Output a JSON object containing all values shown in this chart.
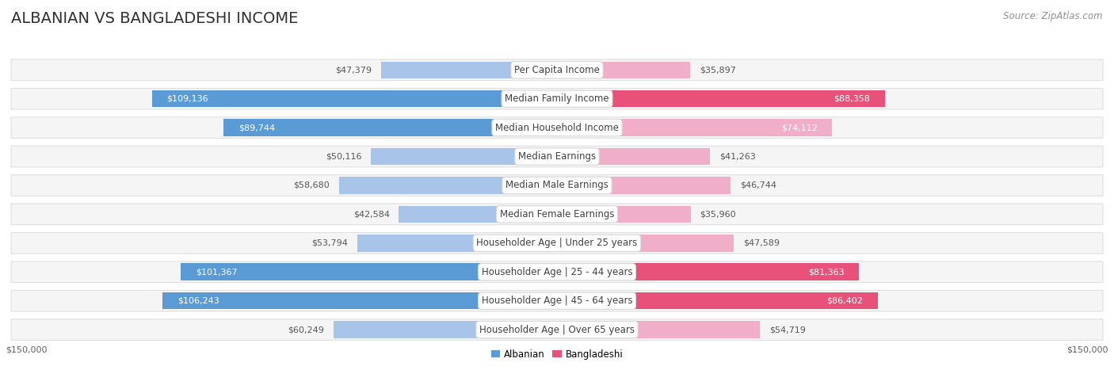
{
  "title": "ALBANIAN VS BANGLADESHI INCOME",
  "source": "Source: ZipAtlas.com",
  "categories": [
    "Per Capita Income",
    "Median Family Income",
    "Median Household Income",
    "Median Earnings",
    "Median Male Earnings",
    "Median Female Earnings",
    "Householder Age | Under 25 years",
    "Householder Age | 25 - 44 years",
    "Householder Age | 45 - 64 years",
    "Householder Age | Over 65 years"
  ],
  "albanian_values": [
    47379,
    109136,
    89744,
    50116,
    58680,
    42584,
    53794,
    101367,
    106243,
    60249
  ],
  "bangladeshi_values": [
    35897,
    88358,
    74112,
    41263,
    46744,
    35960,
    47589,
    81363,
    86402,
    54719
  ],
  "albanian_label": "Albanian",
  "bangladeshi_label": "Bangladeshi",
  "albanian_color_light": "#a8c4e8",
  "albanian_color_dark": "#5b9bd5",
  "bangladeshi_color_light": "#f0aec8",
  "bangladeshi_color_dark": "#e8527a",
  "albanian_dark_threshold": 85000,
  "bangladeshi_dark_threshold": 75000,
  "max_value": 150000,
  "background_color": "#ffffff",
  "row_bg_color": "#f5f5f5",
  "row_edge_color": "#e0e0e0",
  "label_box_color": "#ffffff",
  "label_box_edge": "#d8d8d8",
  "title_fontsize": 14,
  "source_fontsize": 8.5,
  "value_fontsize": 8,
  "label_fontsize": 8.5,
  "axis_label_fontsize": 8
}
